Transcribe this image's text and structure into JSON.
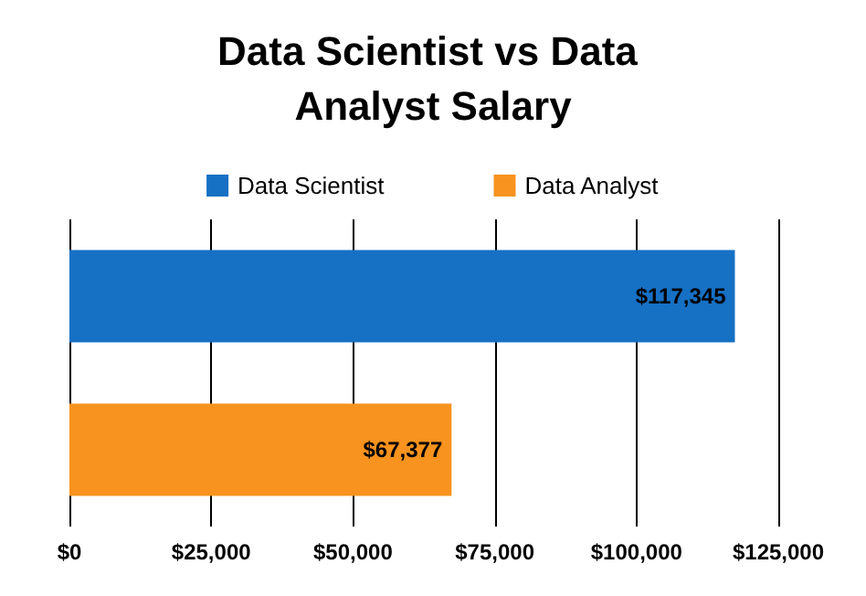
{
  "chart_data": {
    "type": "bar",
    "orientation": "horizontal",
    "title": "Data Scientist vs Data Analyst Salary",
    "categories": [
      null,
      null
    ],
    "series": [
      {
        "name": "Data Scientist",
        "color": "#1670c4",
        "values": [
          117345,
          null
        ],
        "value_labels": [
          "$117,345",
          null
        ]
      },
      {
        "name": "Data Analyst",
        "color": "#f7931e",
        "values": [
          null,
          67377
        ],
        "value_labels": [
          null,
          "$67,377"
        ]
      }
    ],
    "xlim": [
      0,
      125000
    ],
    "xticks": [
      {
        "value": 0,
        "label": "$0"
      },
      {
        "value": 25000,
        "label": "$25,000"
      },
      {
        "value": 50000,
        "label": "$50,000"
      },
      {
        "value": 75000,
        "label": "$75,000"
      },
      {
        "value": 100000,
        "label": "$100,000"
      },
      {
        "value": 125000,
        "label": "$125,000"
      }
    ],
    "grid": "x",
    "legend": "top",
    "tick_labels": "x"
  }
}
